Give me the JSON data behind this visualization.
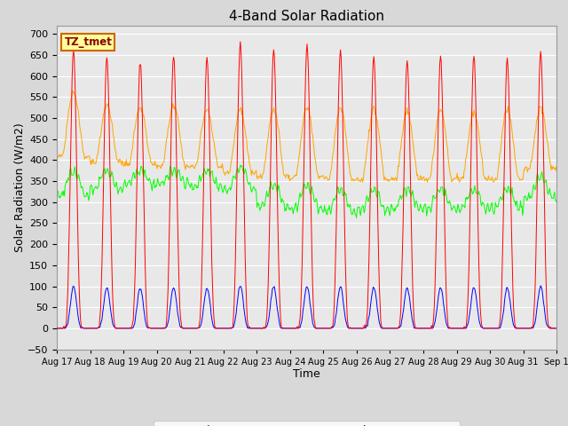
{
  "title": "4-Band Solar Radiation",
  "xlabel": "Time",
  "ylabel": "Solar Radiation (W/m2)",
  "ylim": [
    -50,
    720
  ],
  "yticks": [
    -50,
    0,
    50,
    100,
    150,
    200,
    250,
    300,
    350,
    400,
    450,
    500,
    550,
    600,
    650,
    700
  ],
  "colors": {
    "SWin": "#ff0000",
    "SWout": "#0000ff",
    "LWin": "#00ff00",
    "LWout": "#ffa500"
  },
  "bg_color": "#d8d8d8",
  "plot_bg": "#e8e8e8",
  "annotation_text": "TZ_tmet",
  "annotation_fg": "#8B0000",
  "annotation_bg": "#ffff99",
  "annotation_border": "#cc6600",
  "grid_color": "#ffffff",
  "date_labels": [
    "Aug 17",
    "Aug 18",
    "Aug 19",
    "Aug 20",
    "Aug 21",
    "Aug 22",
    "Aug 23",
    "Aug 24",
    "Aug 25",
    "Aug 26",
    "Aug 27",
    "Aug 28",
    "Aug 29",
    "Aug 30",
    "Aug 31",
    "Sep 1"
  ],
  "n_days": 15,
  "SWin_peaks": [
    660,
    644,
    637,
    648,
    642,
    676,
    660,
    672,
    660,
    645,
    638,
    649,
    648,
    642,
    655
  ],
  "LWout_peaks": [
    560,
    530,
    525,
    530,
    520,
    520,
    520,
    525,
    525,
    520,
    515,
    520,
    515,
    520,
    525
  ],
  "LWout_base": [
    410,
    395,
    390,
    385,
    385,
    370,
    360,
    360,
    355,
    355,
    355,
    355,
    355,
    355,
    380
  ],
  "LWin_base": [
    318,
    330,
    345,
    345,
    335,
    330,
    290,
    285,
    278,
    280,
    285,
    285,
    285,
    285,
    310
  ],
  "LWin_peak_add": [
    55,
    45,
    30,
    30,
    40,
    50,
    50,
    55,
    50,
    48,
    45,
    45,
    45,
    45,
    50
  ],
  "SWout_max": 100
}
